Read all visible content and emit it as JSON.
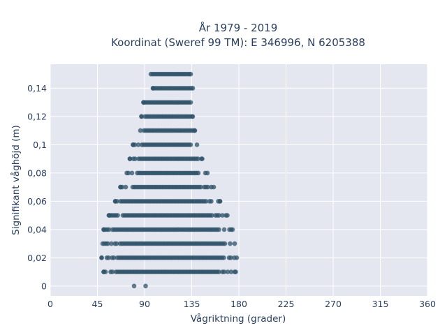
{
  "chart_data": {
    "type": "scatter",
    "title": "År 1979 - 2019",
    "subtitle": "Koordinat (Sweref 99 TM): E 346996, N 6205388",
    "xlabel": "Vågriktning (grader)",
    "ylabel": "Signifikant våghöjd (m)",
    "xlim": [
      0,
      360
    ],
    "ylim": [
      -0.007,
      0.157
    ],
    "xticks": [
      0,
      45,
      90,
      135,
      180,
      225,
      270,
      315,
      360
    ],
    "yticks": [
      0,
      0.02,
      0.04,
      0.06,
      0.08,
      0.1,
      0.12,
      0.14
    ],
    "ytick_labels": [
      "0",
      "0,02",
      "0,04",
      "0,06",
      "0,08",
      "0,1",
      "0,12",
      "0,14"
    ],
    "grid": true,
    "marker_color": "#2e5268",
    "plot_bg": "#e5e7f0",
    "bands": [
      {
        "y": 0.0,
        "xmin": 80,
        "xmax": 91,
        "points": [
          80,
          91
        ]
      },
      {
        "y": 0.01,
        "xmin": 51,
        "xmax": 177
      },
      {
        "y": 0.02,
        "xmin": 49,
        "xmax": 178
      },
      {
        "y": 0.03,
        "xmin": 50,
        "xmax": 176
      },
      {
        "y": 0.04,
        "xmin": 51,
        "xmax": 174
      },
      {
        "y": 0.05,
        "xmin": 56,
        "xmax": 169
      },
      {
        "y": 0.06,
        "xmin": 62,
        "xmax": 162
      },
      {
        "y": 0.07,
        "xmin": 67,
        "xmax": 156
      },
      {
        "y": 0.08,
        "xmin": 73,
        "xmax": 150
      },
      {
        "y": 0.09,
        "xmin": 76,
        "xmax": 145
      },
      {
        "y": 0.1,
        "xmin": 79,
        "xmax": 140
      },
      {
        "y": 0.11,
        "xmin": 86,
        "xmax": 138
      },
      {
        "y": 0.12,
        "xmin": 87,
        "xmax": 136
      },
      {
        "y": 0.13,
        "xmin": 89,
        "xmax": 134
      },
      {
        "y": 0.14,
        "xmin": 98,
        "xmax": 136
      },
      {
        "y": 0.15,
        "xmin": 96,
        "xmax": 134
      }
    ]
  }
}
